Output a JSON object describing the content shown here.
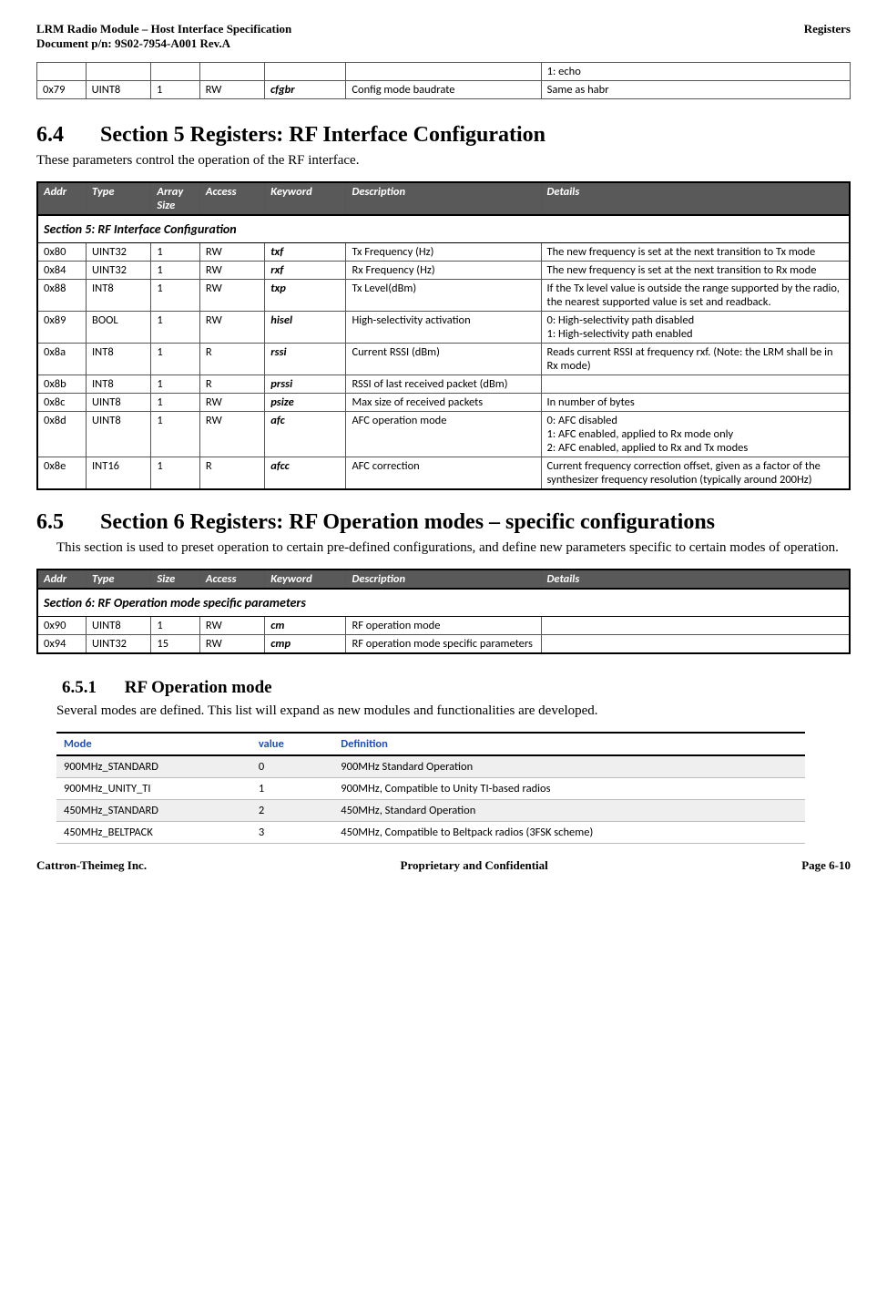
{
  "header": {
    "title_line1": "LRM Radio Module – Host Interface Specification",
    "title_line2": "Document p/n: 9S02-7954-A001 Rev.A",
    "right": "Registers"
  },
  "frag_table": {
    "rows": [
      {
        "addr": "",
        "type": "",
        "size": "",
        "access": "",
        "keyword": "",
        "desc": "",
        "details": "1: echo"
      },
      {
        "addr": "0x79",
        "type": "UINT8",
        "size": "1",
        "access": "RW",
        "keyword": "cfgbr",
        "desc": "Config mode baudrate",
        "details": "Same as habr"
      }
    ]
  },
  "sec64": {
    "num": "6.4",
    "title": "Section 5 Registers: RF Interface Configuration",
    "intro": "These parameters control the operation of the RF interface.",
    "table_title": "Section 5: RF Interface Configuration",
    "cols": [
      "Addr",
      "Type",
      "Array Size",
      "Access",
      "Keyword",
      "Description",
      " Details"
    ],
    "rows": [
      {
        "addr": "0x80",
        "type": "UINT32",
        "size": "1",
        "access": "RW",
        "keyword": "txf",
        "desc": "Tx Frequency (Hz)",
        "details": "The new frequency is set at the next transition to Tx mode"
      },
      {
        "addr": "0x84",
        "type": "UINT32",
        "size": "1",
        "access": "RW",
        "keyword": "rxf",
        "desc": "Rx Frequency (Hz)",
        "details": "The new frequency is set at the next transition to Rx mode"
      },
      {
        "addr": "0x88",
        "type": "INT8",
        "size": "1",
        "access": "RW",
        "keyword": "txp",
        "desc": "Tx Level(dBm)",
        "details": "If the Tx level value is outside the range supported by the radio, the nearest supported value is set and readback."
      },
      {
        "addr": "0x89",
        "type": "BOOL",
        "size": "1",
        "access": "RW",
        "keyword": "hisel",
        "desc": "High-selectivity activation",
        "details": "0: High-selectivity path disabled\n1: High-selectivity path enabled"
      },
      {
        "addr": "0x8a",
        "type": "INT8",
        "size": "1",
        "access": "R",
        "keyword": "rssi",
        "desc": "Current RSSI (dBm)",
        "details": "Reads current RSSI at frequency rxf.  (Note: the LRM shall be in Rx mode)"
      },
      {
        "addr": "0x8b",
        "type": "INT8",
        "size": "1",
        "access": "R",
        "keyword": "prssi",
        "desc": "RSSI of last received packet (dBm)",
        "details": ""
      },
      {
        "addr": "0x8c",
        "type": "UINT8",
        "size": "1",
        "access": "RW",
        "keyword": "psize",
        "desc": "Max size of received packets",
        "details": "In number of bytes"
      },
      {
        "addr": "0x8d",
        "type": "UINT8",
        "size": "1",
        "access": "RW",
        "keyword": "afc",
        "desc": "AFC operation mode",
        "details": "0: AFC disabled\n1: AFC enabled, applied to Rx mode only\n2: AFC enabled, applied to Rx and Tx modes"
      },
      {
        "addr": "0x8e",
        "type": "INT16",
        "size": "1",
        "access": "R",
        "keyword": "afcc",
        "desc": "AFC correction",
        "details": "Current  frequency correction offset, given as a factor of the synthesizer frequency resolution (typically around 200Hz)"
      }
    ]
  },
  "sec65": {
    "num": "6.5",
    "title": "Section 6 Registers: RF Operation modes – specific configurations",
    "intro": "This section is used to preset operation to certain pre-defined configurations, and define new parameters specific to certain modes of operation.",
    "table_title": "Section 6: RF Operation mode specific parameters",
    "cols": [
      "Addr",
      "Type",
      "Size",
      "Access",
      "Keyword",
      "Description",
      " Details"
    ],
    "rows": [
      {
        "addr": "0x90",
        "type": "UINT8",
        "size": "1",
        "access": "RW",
        "keyword": "cm",
        "desc": "RF operation mode",
        "details": ""
      },
      {
        "addr": "0x94",
        "type": "UINT32",
        "size": "15",
        "access": "RW",
        "keyword": "cmp",
        "desc": "RF operation mode specific parameters",
        "details": ""
      }
    ]
  },
  "sec651": {
    "num": "6.5.1",
    "title": "RF Operation mode",
    "intro": "Several modes are defined.  This list will expand as new modules and functionalities are developed.",
    "cols": [
      "Mode",
      "value",
      "Definition"
    ],
    "col_widths": [
      "26%",
      "11%",
      "63%"
    ],
    "header_color": "#1f4fb0",
    "rows": [
      {
        "mode": "900MHz_STANDARD",
        "value": "0",
        "def": "900MHz Standard Operation",
        "shade": true
      },
      {
        "mode": "900MHz_UNITY_TI",
        "value": "1",
        "def": "900MHz, Compatible to Unity TI-based radios",
        "shade": false
      },
      {
        "mode": "450MHz_STANDARD",
        "value": "2",
        "def": "450MHz, Standard Operation",
        "shade": true
      },
      {
        "mode": "450MHz_BELTPACK",
        "value": "3",
        "def": "450MHz, Compatible to Beltpack radios (3FSK scheme)",
        "shade": false
      }
    ]
  },
  "footer": {
    "left": "Cattron-Theimeg Inc.",
    "center": "Proprietary and Confidential",
    "right": "Page  6-10"
  },
  "style": {
    "header_bg": "#595959",
    "header_fg": "#ffffff",
    "shade_bg": "#efefef"
  }
}
